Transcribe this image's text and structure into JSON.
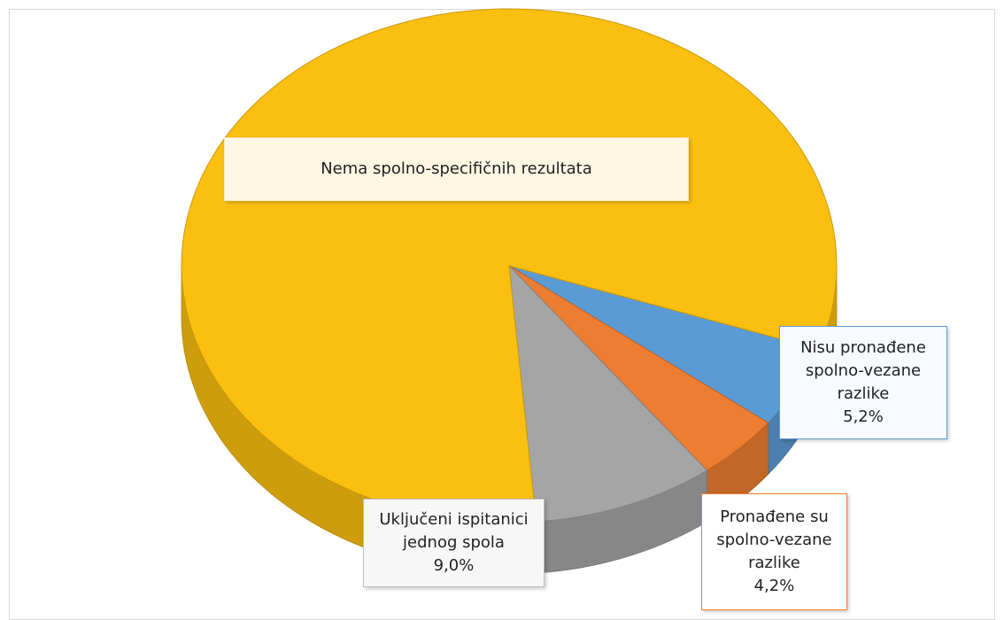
{
  "chart_data": {
    "type": "pie",
    "categories": [
      "Nema spolno-specifičnih rezultata",
      "Nisu pronađene spolno-vezane razlike",
      "Pronađene su spolno-vezane razlike",
      "Uključeni ispitanici jednog spola"
    ],
    "values": [
      81.6,
      5.2,
      4.2,
      9.0
    ],
    "value_labels": [
      null,
      "5,2%",
      "4,2%",
      "9,0%"
    ],
    "colors": [
      "#fbbf10",
      "#5b9bd5",
      "#ed7d31",
      "#a5a5a5"
    ]
  }
}
